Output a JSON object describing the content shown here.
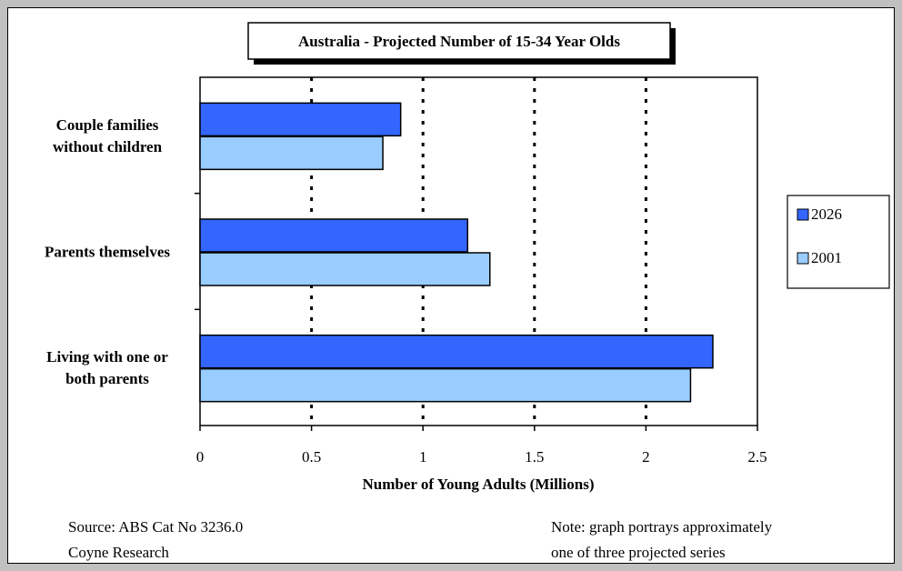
{
  "chart_data": {
    "type": "bar",
    "orientation": "horizontal",
    "title": "Australia - Projected Number of 15-34 Year Olds",
    "xlabel": "Number of Young Adults (Millions)",
    "ylabel": "",
    "xlim": [
      0,
      2.5
    ],
    "x_ticks": [
      "0",
      "0.5",
      "1",
      "1.5",
      "2",
      "2.5"
    ],
    "grid": "vertical dotted",
    "legend_position": "right",
    "categories": [
      [
        "Couple families",
        "without children"
      ],
      [
        "Parents themselves"
      ],
      [
        "Living with one or",
        "both parents"
      ]
    ],
    "series": [
      {
        "name": "2026",
        "color": "#3366ff",
        "values": [
          0.9,
          1.2,
          2.3
        ]
      },
      {
        "name": "2001",
        "color": "#99ccff",
        "values": [
          0.82,
          1.3,
          2.2
        ]
      }
    ]
  },
  "notes": {
    "source_line1": "Source: ABS Cat No 3236.0",
    "source_line2": "Coyne Research",
    "note_line1": "Note: graph portrays approximately",
    "note_line2": "one of three projected series"
  }
}
